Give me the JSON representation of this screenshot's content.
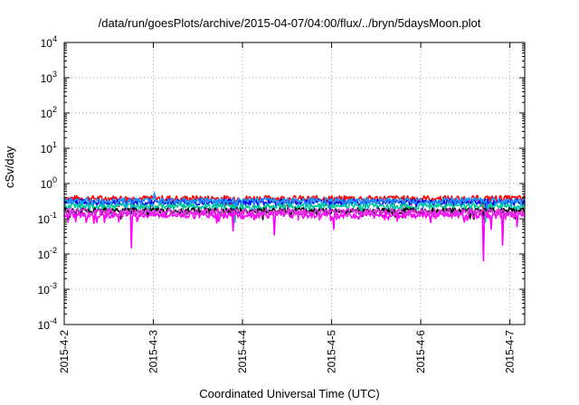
{
  "chart_data": {
    "type": "line",
    "title": "/data/run/goesPlots/archive/2015-04-07/04:00/flux/../bryn/5daysMoon.plot",
    "xlabel": "Coordinated Universal Time (UTC)",
    "ylabel": "cSv/day",
    "y_scale": "log",
    "ylim": [
      0.0001,
      10000
    ],
    "y_tick_labels": [
      {
        "base": "10",
        "exp": "-4"
      },
      {
        "base": "10",
        "exp": "-3"
      },
      {
        "base": "10",
        "exp": "-2"
      },
      {
        "base": "10",
        "exp": "-1"
      },
      {
        "base": "10",
        "exp": "0"
      },
      {
        "base": "10",
        "exp": "1"
      },
      {
        "base": "10",
        "exp": "2"
      },
      {
        "base": "10",
        "exp": "3"
      },
      {
        "base": "10",
        "exp": "4"
      }
    ],
    "xlim": [
      "2015-04-02T00:00",
      "2015-04-07T04:00"
    ],
    "x_ticks": [
      "2015-4-2",
      "2015-4-3",
      "2015-4-4",
      "2015-4-5",
      "2015-4-6",
      "2015-4-7"
    ],
    "grid": true,
    "series": [
      {
        "color": "#ff0000",
        "typical": 0.38,
        "dips": [
          {
            "x": "2015-04-02T18:20",
            "y": 0.18
          },
          {
            "x": "2015-04-03T21:00",
            "y": 0.12
          },
          {
            "x": "2015-04-06T17:00",
            "y": 0.15
          }
        ]
      },
      {
        "color": "#0000ff",
        "typical": 0.3,
        "dips": [
          {
            "x": "2015-04-02T18:30",
            "y": 0.13
          },
          {
            "x": "2015-04-03T21:30",
            "y": 0.09
          },
          {
            "x": "2015-04-06T17:40",
            "y": 0.12
          }
        ]
      },
      {
        "color": "#1e90ff",
        "typical": 0.33,
        "spikes": [
          {
            "x": "2015-04-03T00:20",
            "y": 0.55
          }
        ],
        "dips": [
          {
            "x": "2015-04-02T18:00",
            "y": 0.14
          },
          {
            "x": "2015-04-03T22:00",
            "y": 0.1
          },
          {
            "x": "2015-04-06T18:00",
            "y": 0.11
          }
        ]
      },
      {
        "color": "#00c8a0",
        "typical": 0.23,
        "dips": [
          {
            "x": "2015-04-03T22:00",
            "y": 0.08
          },
          {
            "x": "2015-04-06T17:30",
            "y": 0.08
          }
        ]
      },
      {
        "color": "#000000",
        "typical": 0.17,
        "dips": []
      },
      {
        "color": "#ff00ff",
        "typical": 0.13,
        "dips": [
          {
            "x": "2015-04-02T18:10",
            "y": 0.015
          },
          {
            "x": "2015-04-02T01:00",
            "y": 0.08
          },
          {
            "x": "2015-04-03T21:30",
            "y": 0.045
          },
          {
            "x": "2015-04-04T08:40",
            "y": 0.035
          },
          {
            "x": "2015-04-05T00:30",
            "y": 0.05
          },
          {
            "x": "2015-04-06T17:00",
            "y": 0.0065
          },
          {
            "x": "2015-04-06T19:00",
            "y": 0.05
          },
          {
            "x": "2015-04-06T22:00",
            "y": 0.018
          },
          {
            "x": "2015-04-07T02:00",
            "y": 0.06
          }
        ]
      },
      {
        "color": "#e030e0",
        "typical": 0.16,
        "dips": []
      }
    ]
  }
}
